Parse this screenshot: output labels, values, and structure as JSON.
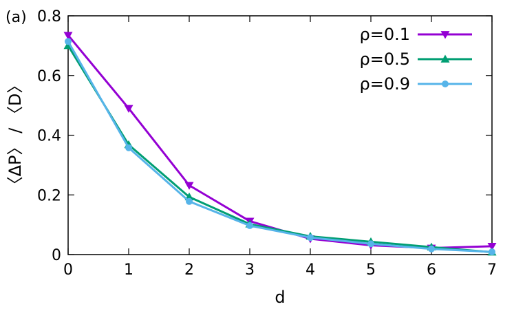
{
  "chart_data": {
    "type": "line",
    "panel_label": "(a)",
    "xlabel": "d",
    "ylabel": "〈ΔP〉 / 〈D〉",
    "xlim": [
      0,
      7
    ],
    "ylim": [
      0,
      0.8
    ],
    "xticks": [
      0,
      1,
      2,
      3,
      4,
      5,
      6,
      7
    ],
    "yticks": [
      0,
      0.2,
      0.4,
      0.6,
      0.8
    ],
    "ytick_labels": [
      "0",
      "0.2",
      "0.4",
      "0.6",
      "0.8"
    ],
    "legend_position": "top-right",
    "grid": false,
    "x": [
      0,
      1,
      2,
      3,
      4,
      5,
      6,
      7
    ],
    "series": [
      {
        "name": "ρ=0.1",
        "color": "#9400d3",
        "marker": "triangle-down",
        "values": [
          0.735,
          0.49,
          0.232,
          0.112,
          0.053,
          0.031,
          0.022,
          0.028
        ]
      },
      {
        "name": "ρ=0.5",
        "color": "#009e73",
        "marker": "triangle-up",
        "values": [
          0.7,
          0.368,
          0.193,
          0.102,
          0.061,
          0.043,
          0.025,
          0.008
        ]
      },
      {
        "name": "ρ=0.9",
        "color": "#56b4e9",
        "marker": "circle",
        "values": [
          0.714,
          0.358,
          0.178,
          0.097,
          0.057,
          0.036,
          0.019,
          0.009
        ]
      }
    ]
  }
}
